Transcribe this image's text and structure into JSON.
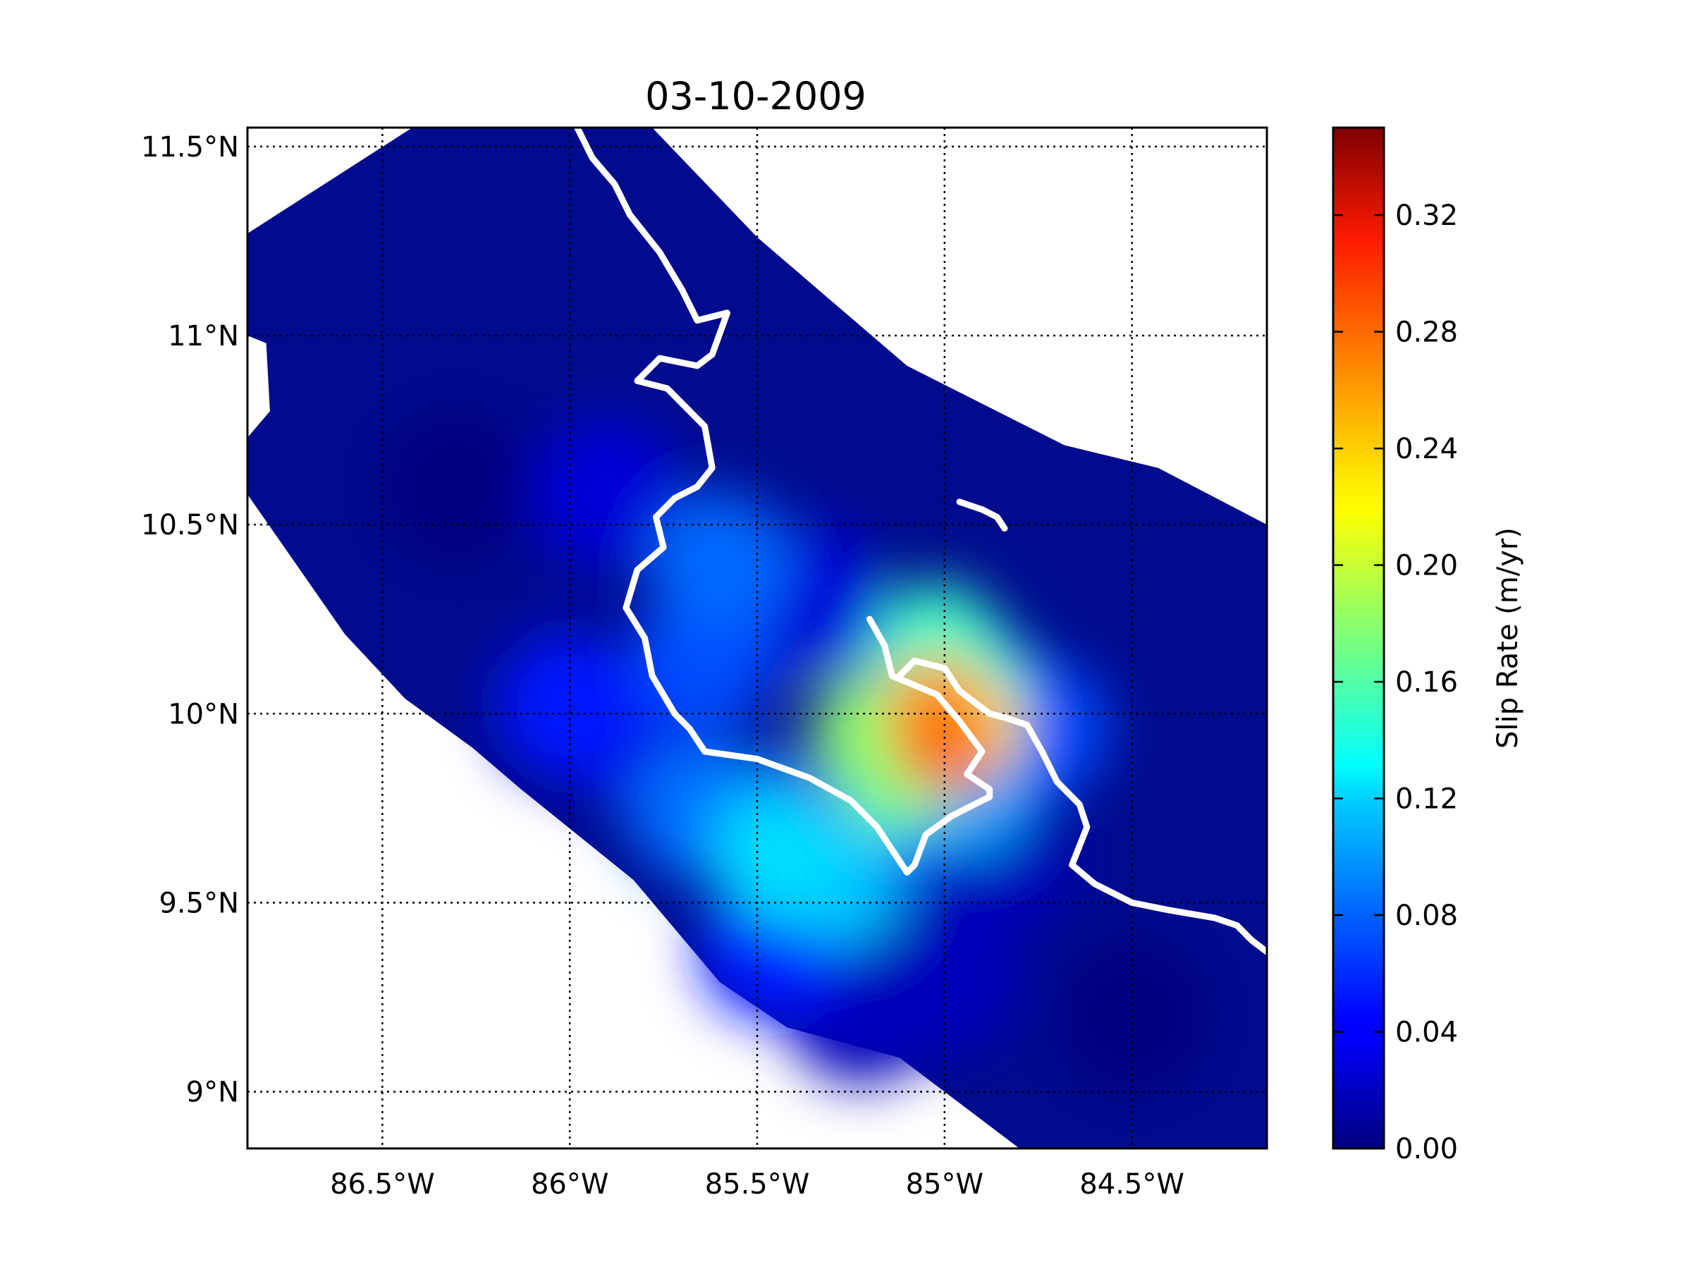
{
  "chart_data": {
    "type": "heatmap",
    "title": "03-10-2009",
    "x_ticks": [
      "86.5°W",
      "86°W",
      "85.5°W",
      "85°W",
      "84.5°W"
    ],
    "x_tick_values": [
      -86.5,
      -86.0,
      -85.5,
      -85.0,
      -84.5
    ],
    "y_ticks": [
      "11.5°N",
      "11°N",
      "10.5°N",
      "10°N",
      "9.5°N",
      "9°N"
    ],
    "y_tick_values": [
      11.5,
      11.0,
      10.5,
      10.0,
      9.5,
      9.0
    ],
    "xlim": [
      -86.86,
      -84.14
    ],
    "ylim": [
      8.85,
      11.55
    ],
    "grid": true,
    "colorbar": {
      "label": "Slip Rate (m/yr)",
      "colormap": "jet",
      "range": [
        0.0,
        0.35
      ],
      "ticks": [
        "0.00",
        "0.04",
        "0.08",
        "0.12",
        "0.16",
        "0.20",
        "0.24",
        "0.28",
        "0.32"
      ],
      "tick_values": [
        0.0,
        0.04,
        0.08,
        0.12,
        0.16,
        0.2,
        0.24,
        0.28,
        0.32
      ]
    },
    "fault_extent": [
      [
        -86.86,
        11.27
      ],
      [
        -86.42,
        11.55
      ],
      [
        -85.78,
        11.55
      ],
      [
        -85.5,
        11.26
      ],
      [
        -85.1,
        10.92
      ],
      [
        -84.68,
        10.71
      ],
      [
        -84.43,
        10.65
      ],
      [
        -84.14,
        10.5
      ],
      [
        -84.14,
        8.85
      ],
      [
        -84.8,
        8.85
      ],
      [
        -85.12,
        9.09
      ],
      [
        -85.42,
        9.17
      ],
      [
        -85.6,
        9.29
      ],
      [
        -85.83,
        9.56
      ],
      [
        -86.13,
        9.8
      ],
      [
        -86.26,
        9.91
      ],
      [
        -86.44,
        10.04
      ],
      [
        -86.6,
        10.21
      ],
      [
        -86.86,
        10.58
      ],
      [
        -86.86,
        10.73
      ],
      [
        -86.8,
        10.8
      ],
      [
        -86.81,
        10.98
      ],
      [
        -86.86,
        11.0
      ]
    ],
    "slip_patches": [
      {
        "lon": -85.0,
        "lat": 9.92,
        "value": 0.27
      },
      {
        "lon": -85.02,
        "lat": 10.02,
        "value": 0.25
      },
      {
        "lon": -84.94,
        "lat": 9.97,
        "value": 0.22
      },
      {
        "lon": -85.2,
        "lat": 9.95,
        "value": 0.18
      },
      {
        "lon": -85.12,
        "lat": 9.84,
        "value": 0.17
      },
      {
        "lon": -85.02,
        "lat": 10.18,
        "value": 0.15
      },
      {
        "lon": -84.96,
        "lat": 10.1,
        "value": 0.13
      },
      {
        "lon": -85.44,
        "lat": 9.62,
        "value": 0.12
      },
      {
        "lon": -85.28,
        "lat": 9.56,
        "value": 0.11
      },
      {
        "lon": -84.95,
        "lat": 9.8,
        "value": 0.1
      },
      {
        "lon": -85.08,
        "lat": 10.06,
        "value": 0.1
      },
      {
        "lon": -85.5,
        "lat": 9.72,
        "value": 0.09
      },
      {
        "lon": -85.66,
        "lat": 9.74,
        "value": 0.08
      },
      {
        "lon": -85.6,
        "lat": 10.4,
        "value": 0.08
      },
      {
        "lon": -85.64,
        "lat": 10.14,
        "value": 0.07
      },
      {
        "lon": -84.75,
        "lat": 9.96,
        "value": 0.07
      },
      {
        "lon": -86.0,
        "lat": 10.02,
        "value": 0.05
      },
      {
        "lon": -85.46,
        "lat": 9.38,
        "value": 0.05
      },
      {
        "lon": -85.2,
        "lat": 9.68,
        "value": 0.04
      },
      {
        "lon": -85.9,
        "lat": 10.58,
        "value": 0.03
      },
      {
        "lon": -85.36,
        "lat": 10.3,
        "value": 0.03
      },
      {
        "lon": -85.8,
        "lat": 9.92,
        "value": 0.03
      },
      {
        "lon": -84.86,
        "lat": 9.62,
        "value": 0.02
      },
      {
        "lon": -85.0,
        "lat": 9.3,
        "value": 0.02
      },
      {
        "lon": -85.22,
        "lat": 9.22,
        "value": 0.02
      },
      {
        "lon": -86.3,
        "lat": 10.6,
        "value": 0.0
      },
      {
        "lon": -84.5,
        "lat": 9.2,
        "value": 0.0
      }
    ],
    "coastlines": [
      [
        [
          -85.98,
          11.55
        ],
        [
          -85.94,
          11.47
        ],
        [
          -85.88,
          11.4
        ],
        [
          -85.84,
          11.32
        ],
        [
          -85.76,
          11.22
        ],
        [
          -85.7,
          11.12
        ],
        [
          -85.66,
          11.04
        ],
        [
          -85.58,
          11.06
        ],
        [
          -85.62,
          10.95
        ],
        [
          -85.66,
          10.92
        ],
        [
          -85.76,
          10.94
        ],
        [
          -85.82,
          10.88
        ],
        [
          -85.74,
          10.86
        ],
        [
          -85.68,
          10.8
        ],
        [
          -85.64,
          10.76
        ],
        [
          -85.62,
          10.65
        ],
        [
          -85.66,
          10.6
        ],
        [
          -85.72,
          10.57
        ],
        [
          -85.77,
          10.52
        ],
        [
          -85.75,
          10.44
        ],
        [
          -85.82,
          10.38
        ],
        [
          -85.85,
          10.28
        ],
        [
          -85.8,
          10.2
        ],
        [
          -85.78,
          10.1
        ],
        [
          -85.72,
          10.0
        ],
        [
          -85.68,
          9.96
        ],
        [
          -85.64,
          9.9
        ],
        [
          -85.5,
          9.88
        ],
        [
          -85.36,
          9.83
        ],
        [
          -85.25,
          9.77
        ],
        [
          -85.18,
          9.7
        ],
        [
          -85.1,
          9.58
        ],
        [
          -85.08,
          9.6
        ],
        [
          -85.05,
          9.68
        ],
        [
          -84.98,
          9.73
        ],
        [
          -84.88,
          9.78
        ],
        [
          -84.88,
          9.8
        ],
        [
          -84.94,
          9.84
        ],
        [
          -84.9,
          9.9
        ],
        [
          -84.96,
          9.98
        ],
        [
          -85.02,
          10.05
        ],
        [
          -85.14,
          10.1
        ],
        [
          -85.16,
          10.18
        ],
        [
          -85.2,
          10.25
        ]
      ],
      [
        [
          -85.12,
          10.1
        ],
        [
          -85.08,
          10.14
        ],
        [
          -85.0,
          10.12
        ],
        [
          -84.96,
          10.06
        ],
        [
          -84.88,
          10.0
        ],
        [
          -84.84,
          9.99
        ],
        [
          -84.78,
          9.97
        ],
        [
          -84.74,
          9.9
        ],
        [
          -84.7,
          9.82
        ],
        [
          -84.64,
          9.76
        ],
        [
          -84.62,
          9.7
        ],
        [
          -84.66,
          9.6
        ],
        [
          -84.6,
          9.55
        ],
        [
          -84.5,
          9.5
        ],
        [
          -84.4,
          9.48
        ],
        [
          -84.28,
          9.46
        ],
        [
          -84.22,
          9.44
        ],
        [
          -84.18,
          9.4
        ],
        [
          -84.14,
          9.37
        ]
      ],
      [
        [
          -84.96,
          10.56
        ],
        [
          -84.9,
          10.54
        ],
        [
          -84.86,
          10.52
        ],
        [
          -84.84,
          10.49
        ]
      ]
    ]
  }
}
